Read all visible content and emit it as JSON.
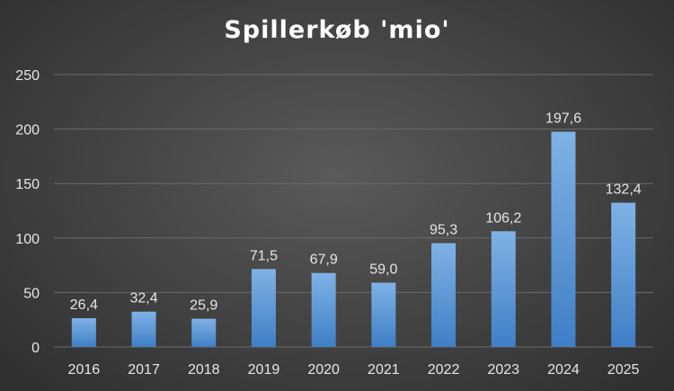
{
  "chart_data": {
    "type": "bar",
    "title": "Spillerkøb 'mio'",
    "categories": [
      "2016",
      "2017",
      "2018",
      "2019",
      "2020",
      "2021",
      "2022",
      "2023",
      "2024",
      "2025"
    ],
    "values": [
      26.4,
      32.4,
      25.9,
      71.5,
      67.9,
      59.0,
      95.3,
      106.2,
      197.6,
      132.4
    ],
    "data_labels": [
      "26,4",
      "32,4",
      "25,9",
      "71,5",
      "67,9",
      "59,0",
      "95,3",
      "106,2",
      "197,6",
      "132,4"
    ],
    "yticks": [
      0,
      50,
      100,
      150,
      200,
      250
    ],
    "ylim": [
      0,
      250
    ],
    "xlabel": "",
    "ylabel": "",
    "grid": true,
    "legend": "none",
    "colors": {
      "bar_top": "#7fb2e5",
      "bar_bottom": "#3f7fc6",
      "grid": "#6a6a6a",
      "text": "#e6e6e6"
    }
  }
}
